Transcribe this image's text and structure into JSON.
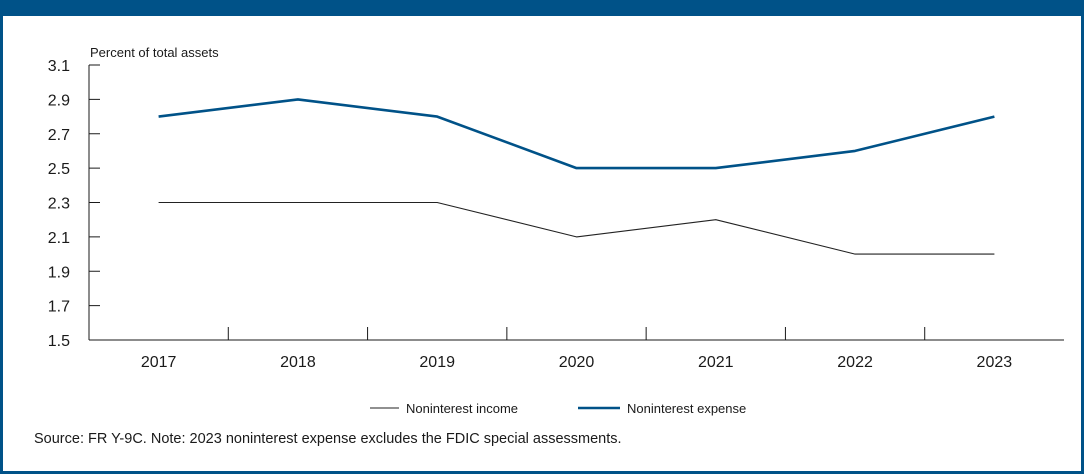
{
  "colors": {
    "accent": "#005288",
    "income_line": "#222222",
    "text": "#1a1a1a"
  },
  "chart_data": {
    "type": "line",
    "ylabel": "Percent of total assets",
    "ylim": [
      1.5,
      3.1
    ],
    "yticks": [
      "1.5",
      "1.7",
      "1.9",
      "2.1",
      "2.3",
      "2.5",
      "2.7",
      "2.9",
      "3.1"
    ],
    "categories": [
      "2017",
      "2018",
      "2019",
      "2020",
      "2021",
      "2022",
      "2023"
    ],
    "series": [
      {
        "name": "Noninterest income",
        "color": "#222222",
        "values": [
          2.3,
          2.3,
          2.3,
          2.1,
          2.2,
          2.0,
          2.0
        ]
      },
      {
        "name": "Noninterest expense",
        "color": "#005288",
        "values": [
          2.8,
          2.9,
          2.8,
          2.5,
          2.5,
          2.6,
          2.8
        ]
      }
    ],
    "legend_position": "bottom-center",
    "grid": false
  },
  "note": "Source: FR Y-9C. Note: 2023 noninterest expense excludes the FDIC special assessments."
}
